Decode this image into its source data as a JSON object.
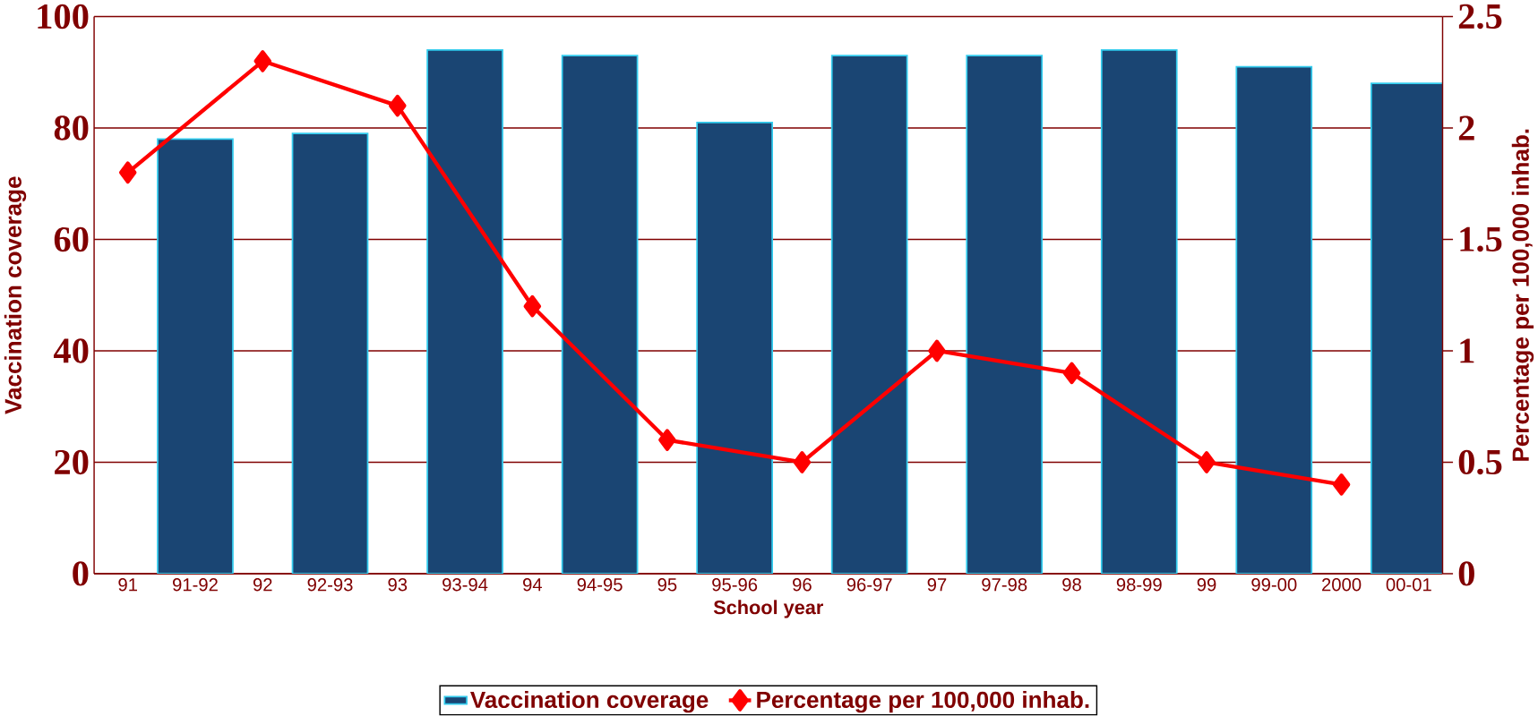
{
  "chart_data": {
    "type": "bar",
    "categories": [
      "91",
      "91-92",
      "92",
      "92-93",
      "93",
      "93-94",
      "94",
      "94-95",
      "95",
      "95-96",
      "96",
      "96-97",
      "97",
      "97-98",
      "98",
      "98-99",
      "99",
      "99-00",
      "2000",
      "00-01"
    ],
    "series": [
      {
        "name": "Vaccination coverage",
        "color": "#1a4573",
        "values": [
          null,
          78,
          null,
          79,
          null,
          94,
          null,
          93,
          null,
          81,
          null,
          93,
          null,
          93,
          null,
          94,
          null,
          91,
          null,
          88
        ]
      },
      {
        "name": "Percentage per 100,000 inhab.",
        "type": "line",
        "axis": "y2",
        "color": "#ff0000",
        "marker": "diamond",
        "values": [
          1.8,
          null,
          2.3,
          null,
          2.1,
          null,
          1.2,
          null,
          0.6,
          null,
          0.5,
          null,
          1.0,
          null,
          0.9,
          null,
          0.5,
          null,
          0.4,
          null
        ]
      }
    ],
    "xlabel": "School year",
    "ylabel": "Vaccination coverage",
    "y2label": "Percentage per 100,000 inhab.",
    "ylim": [
      0,
      100
    ],
    "yticks": [
      0,
      20,
      40,
      60,
      80,
      100
    ],
    "y2lim": [
      0,
      2.5
    ],
    "y2ticks": [
      0,
      0.5,
      1,
      1.5,
      2,
      2.5
    ],
    "grid": "y",
    "legend": "bottom"
  }
}
